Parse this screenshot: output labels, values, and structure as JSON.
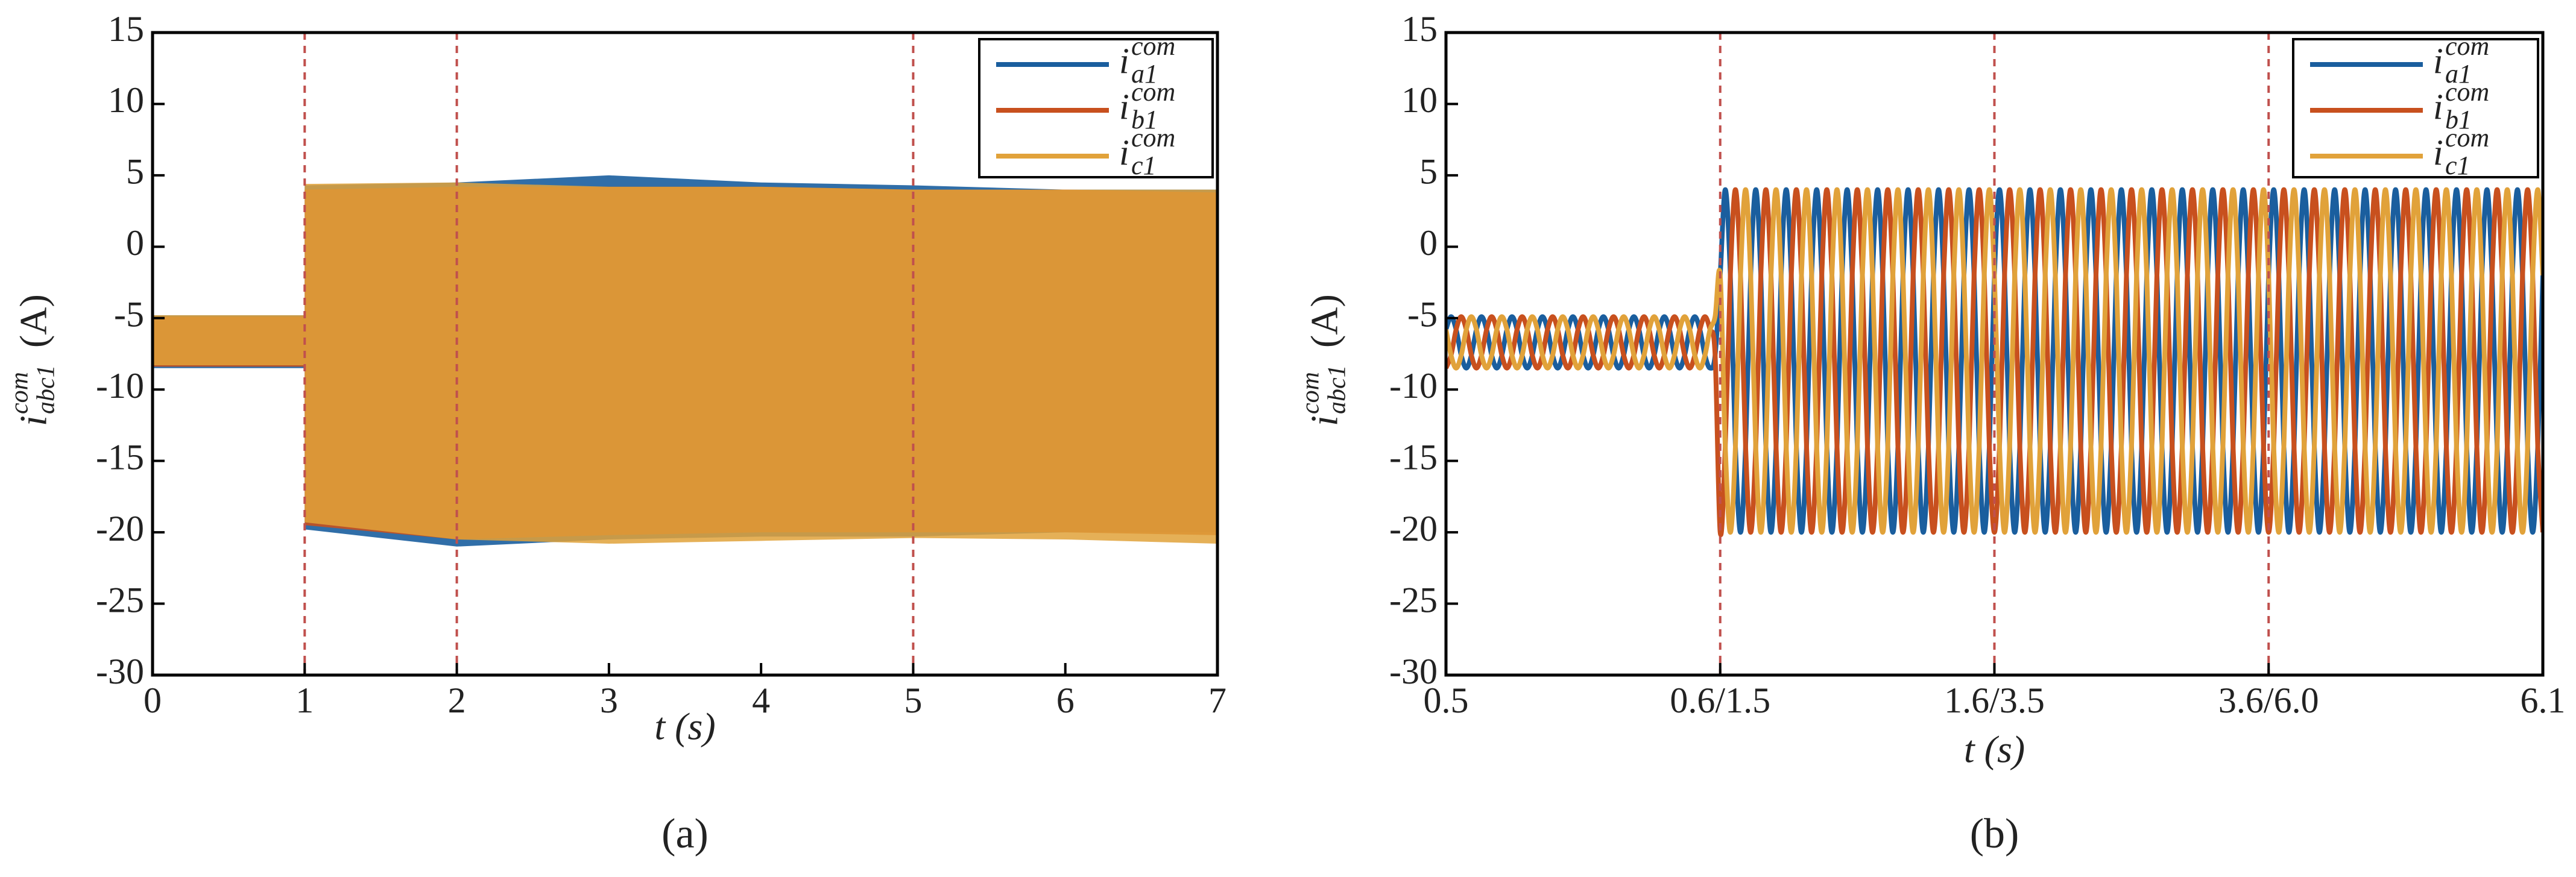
{
  "chart_data": [
    {
      "type": "area",
      "caption": "(a)",
      "xlabel": "t (s)",
      "ylabel": {
        "var": "i",
        "sup": "com",
        "sub": "abc1",
        "unit": "(A)"
      },
      "xlim": [
        0,
        7
      ],
      "xticks": [
        0,
        1,
        2,
        3,
        4,
        5,
        6,
        7
      ],
      "ylim": [
        -30,
        15
      ],
      "yticks": [
        -30,
        -25,
        -20,
        -15,
        -10,
        -5,
        0,
        5,
        10,
        15
      ],
      "vlines": [
        1,
        2,
        5
      ],
      "vline_color": "#c0504d",
      "x": [
        0,
        1,
        1,
        2,
        3,
        4,
        5,
        6,
        7
      ],
      "series": [
        {
          "name": "i",
          "sub": "a1",
          "sup": "com",
          "color": "#1a5e9e",
          "values": [
            -4.8,
            -4.8,
            4.3,
            4.5,
            5,
            4.5,
            4.3,
            4,
            4
          ],
          "lower": [
            -8.5,
            -8.5,
            -19.8,
            -21,
            -20.5,
            -20.3,
            -20.3,
            -20,
            -20
          ]
        },
        {
          "name": "i",
          "sub": "b1",
          "sup": "com",
          "color": "#c8501e",
          "values": [
            -4.9,
            -4.9,
            4,
            4.2,
            4.2,
            4.2,
            4,
            4,
            3.8
          ],
          "lower": [
            -8.4,
            -8.4,
            -19.5,
            -20.5,
            -20.2,
            -20,
            -20,
            -20,
            -20.2
          ]
        },
        {
          "name": "i",
          "sub": "c1",
          "sup": "com",
          "color": "#e1a23a",
          "values": [
            -4.8,
            -4.8,
            4.4,
            4.5,
            4.2,
            4.2,
            4,
            4,
            4
          ],
          "lower": [
            -8.3,
            -8.3,
            -19.3,
            -20.5,
            -20.8,
            -20.6,
            -20.4,
            -20.5,
            -20.8
          ]
        }
      ]
    },
    {
      "type": "line",
      "caption": "(b)",
      "xlabel": "t (s)",
      "ylabel": {
        "var": "i",
        "sup": "com",
        "sub": "abc1",
        "unit": "(A)"
      },
      "xlim": [
        0,
        216
      ],
      "xticks": [
        {
          "value": 0,
          "label": "0.5"
        },
        {
          "value": 54,
          "label": "0.6/1.5"
        },
        {
          "value": 108,
          "label": "1.6/3.5"
        },
        {
          "value": 162,
          "label": "3.6/6.0"
        },
        {
          "value": 216,
          "label": "6.1"
        }
      ],
      "ylim": [
        -30,
        15
      ],
      "yticks": [
        -30,
        -25,
        -20,
        -15,
        -10,
        -5,
        0,
        5,
        10,
        15
      ],
      "vlines": [
        54,
        108,
        162
      ],
      "vline_color": "#c0504d",
      "x": [
        0,
        1,
        2,
        3,
        4,
        5,
        6,
        7,
        8,
        9,
        10,
        11,
        12,
        13,
        14,
        15,
        16,
        17,
        18,
        19,
        20,
        21,
        22,
        23,
        24,
        25,
        26,
        27,
        28,
        29,
        30,
        31,
        32,
        33,
        34,
        35,
        36,
        37,
        38,
        39,
        40,
        41,
        42,
        43,
        44,
        45,
        46,
        47,
        48,
        49,
        50,
        51,
        52,
        53,
        54,
        55,
        56,
        57,
        58,
        59,
        60,
        61,
        62,
        63,
        64,
        65,
        66,
        67,
        68,
        69,
        70,
        71,
        72,
        73,
        74,
        75,
        76,
        77,
        78,
        79,
        80,
        81,
        82,
        83,
        84,
        85,
        86,
        87,
        88,
        89,
        90,
        91,
        92,
        93,
        94,
        95,
        96,
        97,
        98,
        99,
        100,
        101,
        102,
        103,
        104,
        105,
        106,
        107,
        108,
        109,
        110,
        111,
        112,
        113,
        114,
        115,
        116,
        117,
        118,
        119,
        120,
        121,
        122,
        123,
        124,
        125,
        126,
        127,
        128,
        129,
        130,
        131,
        132,
        133,
        134,
        135,
        136,
        137,
        138,
        139,
        140,
        141,
        142,
        143,
        144,
        145,
        146,
        147,
        148,
        149,
        150,
        151,
        152,
        153,
        154,
        155,
        156,
        157,
        158,
        159,
        160,
        161,
        162,
        163,
        164,
        165,
        166,
        167,
        168,
        169,
        170,
        171,
        172,
        173,
        174,
        175,
        176,
        177,
        178,
        179,
        180,
        181,
        182,
        183,
        184,
        185,
        186,
        187,
        188,
        189,
        190,
        191,
        192,
        193,
        194,
        195,
        196,
        197,
        198,
        199,
        200,
        201,
        202,
        203,
        204,
        205,
        206,
        207,
        208,
        209,
        210,
        211,
        212,
        213,
        214,
        215,
        216
      ],
      "series": [
        {
          "name": "i",
          "sub": "a1",
          "sup": "com",
          "color": "#1a5e9e",
          "values": [
            -5.8,
            -4.9,
            -5.8,
            -7.6,
            -8.5,
            -7.6,
            -5.8,
            -4.9,
            -5.8,
            -7.6,
            -8.5,
            -7.6,
            -5.8,
            -4.9,
            -5.8,
            -7.6,
            -8.5,
            -7.6,
            -5.8,
            -4.9,
            -5.8,
            -7.6,
            -8.5,
            -7.6,
            -5.8,
            -4.9,
            -5.8,
            -7.6,
            -8.5,
            -7.6,
            -5.8,
            -4.9,
            -5.8,
            -7.6,
            -8.5,
            -7.6,
            -5.8,
            -4.9,
            -5.8,
            -7.6,
            -8.5,
            -7.6,
            -5.8,
            -4.9,
            -5.8,
            -7.6,
            -8.5,
            -7.6,
            -5.8,
            -4.9,
            -5.8,
            -7.6,
            -8.5,
            -7.6,
            -2,
            4,
            -2,
            -14,
            -20,
            -14,
            -2,
            4,
            -2,
            -14,
            -20,
            -14,
            -2,
            4,
            -2,
            -14,
            -20,
            -14,
            -2,
            4,
            -2,
            -14,
            -20,
            -14,
            -2,
            4,
            -2,
            -14,
            -20,
            -14,
            -2,
            4,
            -2,
            -14,
            -20,
            -14,
            -2,
            4,
            -2,
            -14,
            -20,
            -14,
            -2,
            4,
            -2,
            -14,
            -20,
            -14,
            -2,
            4,
            -2,
            -14,
            -20,
            -14,
            -2,
            4,
            -2,
            -14,
            -20,
            -14,
            -2,
            4,
            -2,
            -14,
            -20,
            -14,
            -2,
            4,
            -2,
            -14,
            -20,
            -14,
            -2,
            4,
            -2,
            -14,
            -20,
            -14,
            -2,
            4,
            -2,
            -14,
            -20,
            -14,
            -2,
            4,
            -2,
            -14,
            -20,
            -14,
            -2,
            4,
            -2,
            -14,
            -20,
            -14,
            -2,
            4,
            -2,
            -14,
            -20,
            -14,
            -2,
            4,
            -2,
            -14,
            -20,
            -14,
            -2,
            4,
            -2,
            -14,
            -20,
            -14,
            -2,
            4,
            -2,
            -14,
            -20,
            -14,
            -2,
            4,
            -2,
            -14,
            -20,
            -14,
            -2,
            4,
            -2,
            -14,
            -20,
            -14,
            -2,
            4,
            -2,
            -14,
            -20,
            -14,
            -2,
            4,
            -2,
            -14,
            -20,
            -14,
            -2,
            4,
            -2,
            -14,
            -20,
            -14,
            -2,
            4,
            -2,
            -14,
            -20,
            -14,
            -2,
            4,
            -2,
            -14,
            -20,
            -14,
            -2
          ]
        },
        {
          "name": "i",
          "sub": "b1",
          "sup": "com",
          "color": "#c8501e",
          "values": [
            -8.5,
            -7.6,
            -5.8,
            -4.9,
            -5.8,
            -7.6,
            -8.5,
            -7.6,
            -5.8,
            -4.9,
            -5.8,
            -7.6,
            -8.5,
            -7.6,
            -5.8,
            -4.9,
            -5.8,
            -7.6,
            -8.5,
            -7.6,
            -5.8,
            -4.9,
            -5.8,
            -7.6,
            -8.5,
            -7.6,
            -5.8,
            -4.9,
            -5.8,
            -7.6,
            -8.5,
            -7.6,
            -5.8,
            -4.9,
            -5.8,
            -7.6,
            -8.5,
            -7.6,
            -5.8,
            -4.9,
            -5.8,
            -7.6,
            -8.5,
            -7.6,
            -5.8,
            -4.9,
            -5.8,
            -7.6,
            -8.5,
            -7.6,
            -5.8,
            -4.9,
            -5.8,
            -7.6,
            -20,
            -14,
            -2,
            4,
            -2,
            -14,
            -20,
            -14,
            -2,
            4,
            -2,
            -14,
            -20,
            -14,
            -2,
            4,
            -2,
            -14,
            -20,
            -14,
            -2,
            4,
            -2,
            -14,
            -20,
            -14,
            -2,
            4,
            -2,
            -14,
            -20,
            -14,
            -2,
            4,
            -2,
            -14,
            -20,
            -14,
            -2,
            4,
            -2,
            -14,
            -20,
            -14,
            -2,
            4,
            -2,
            -14,
            -20,
            -14,
            -2,
            4,
            -2,
            -14,
            -20,
            -14,
            -2,
            4,
            -2,
            -14,
            -20,
            -14,
            -2,
            4,
            -2,
            -14,
            -20,
            -14,
            -2,
            4,
            -2,
            -14,
            -20,
            -14,
            -2,
            4,
            -2,
            -14,
            -20,
            -14,
            -2,
            4,
            -2,
            -14,
            -20,
            -14,
            -2,
            4,
            -2,
            -14,
            -20,
            -14,
            -2,
            4,
            -2,
            -14,
            -20,
            -14,
            -2,
            4,
            -2,
            -14,
            -20,
            -14,
            -2,
            4,
            -2,
            -14,
            -20,
            -14,
            -2,
            4,
            -2,
            -14,
            -20,
            -14,
            -2,
            4,
            -2,
            -14,
            -20,
            -14,
            -2,
            4,
            -2,
            -14,
            -20,
            -14,
            -2,
            4,
            -2,
            -14,
            -20,
            -14,
            -2,
            4,
            -2,
            -14,
            -20,
            -14,
            -2,
            4,
            -2,
            -14,
            -20,
            -14,
            -2,
            4,
            -2,
            -14,
            -20,
            -14,
            -2,
            4,
            -2,
            -14,
            -20,
            -14,
            -2,
            4,
            -2,
            -14,
            -20
          ]
        },
        {
          "name": "i",
          "sub": "c1",
          "sup": "com",
          "color": "#e1a23a",
          "values": [
            -5.8,
            -7.6,
            -8.5,
            -7.6,
            -5.8,
            -4.9,
            -5.8,
            -7.6,
            -8.5,
            -7.6,
            -5.8,
            -4.9,
            -5.8,
            -7.6,
            -8.5,
            -7.6,
            -5.8,
            -4.9,
            -5.8,
            -7.6,
            -8.5,
            -7.6,
            -5.8,
            -4.9,
            -5.8,
            -7.6,
            -8.5,
            -7.6,
            -5.8,
            -4.9,
            -5.8,
            -7.6,
            -8.5,
            -7.6,
            -5.8,
            -4.9,
            -5.8,
            -7.6,
            -8.5,
            -7.6,
            -5.8,
            -4.9,
            -5.8,
            -7.6,
            -8.5,
            -7.6,
            -5.8,
            -4.9,
            -5.8,
            -7.6,
            -8.5,
            -7.6,
            -5.8,
            -4.9,
            -2,
            -14,
            -20,
            -14,
            -2,
            4,
            -2,
            -14,
            -20,
            -14,
            -2,
            4,
            -2,
            -14,
            -20,
            -14,
            -2,
            4,
            -2,
            -14,
            -20,
            -14,
            -2,
            4,
            -2,
            -14,
            -20,
            -14,
            -2,
            4,
            -2,
            -14,
            -20,
            -14,
            -2,
            4,
            -2,
            -14,
            -20,
            -14,
            -2,
            4,
            -2,
            -14,
            -20,
            -14,
            -2,
            4,
            -2,
            -14,
            -20,
            -14,
            -2,
            4,
            -2,
            -14,
            -20,
            -14,
            -2,
            4,
            -2,
            -14,
            -20,
            -14,
            -2,
            4,
            -2,
            -14,
            -20,
            -14,
            -2,
            4,
            -2,
            -14,
            -20,
            -14,
            -2,
            4,
            -2,
            -14,
            -20,
            -14,
            -2,
            4,
            -2,
            -14,
            -20,
            -14,
            -2,
            4,
            -2,
            -14,
            -20,
            -14,
            -2,
            4,
            -2,
            -14,
            -20,
            -14,
            -2,
            4,
            -2,
            -14,
            -20,
            -14,
            -2,
            4,
            -2,
            -14,
            -20,
            -14,
            -2,
            4,
            -2,
            -14,
            -20,
            -14,
            -2,
            4,
            -2,
            -14,
            -20,
            -14,
            -2,
            4,
            -2,
            -14,
            -20,
            -14,
            -2,
            4,
            -2,
            -14,
            -20,
            -14,
            -2,
            4,
            -2,
            -14,
            -20,
            -14,
            -2,
            4,
            -2,
            -14,
            -20,
            -14,
            -2,
            4,
            -2,
            -14,
            -20,
            -14,
            -2,
            4,
            -2,
            -14,
            -20,
            -14,
            -2,
            4,
            -2
          ]
        }
      ]
    }
  ]
}
